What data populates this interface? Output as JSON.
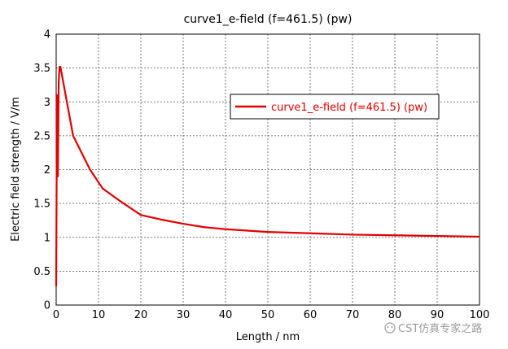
{
  "chart_data": {
    "type": "line",
    "title": "curve1_e-field (f=461.5) (pw)",
    "xlabel": "Length / nm",
    "ylabel": "Electric field strength / V/m",
    "xlim": [
      0,
      100
    ],
    "ylim": [
      0,
      4
    ],
    "xticks": [
      "0",
      "10",
      "20",
      "30",
      "40",
      "50",
      "60",
      "70",
      "80",
      "90",
      "100"
    ],
    "yticks": [
      "0",
      "0.5",
      "1",
      "1.5",
      "2",
      "2.5",
      "3",
      "3.5",
      "4"
    ],
    "grid": true,
    "legend_position": "top-right",
    "series": [
      {
        "name": "curve1_e-field (f=461.5) (pw)",
        "color": "#e00000",
        "x": [
          0,
          0.2,
          0.4,
          0.6,
          0.8,
          1,
          4,
          8,
          11,
          15,
          20,
          25,
          30,
          35,
          40,
          50,
          60,
          70,
          80,
          90,
          100
        ],
        "y": [
          0.28,
          3.1,
          1.9,
          3.3,
          3.52,
          3.52,
          2.5,
          2.0,
          1.72,
          1.54,
          1.33,
          1.26,
          1.2,
          1.15,
          1.12,
          1.08,
          1.06,
          1.04,
          1.03,
          1.02,
          1.01
        ]
      }
    ]
  },
  "watermark": "CST仿真专家之路"
}
